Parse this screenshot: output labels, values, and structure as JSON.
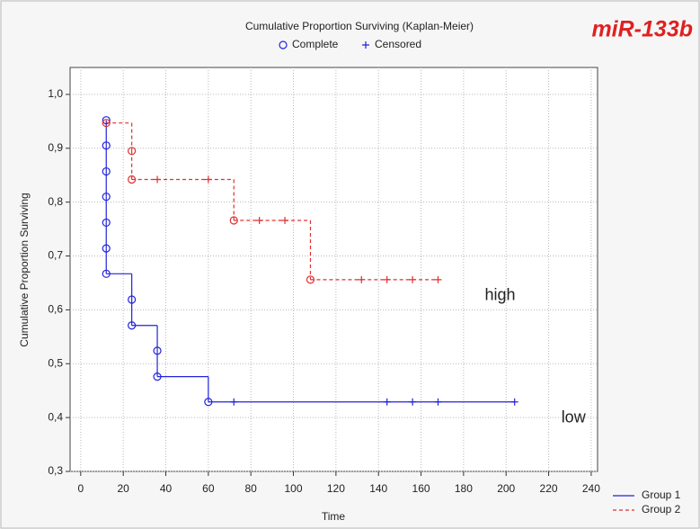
{
  "chart_data": {
    "type": "km",
    "title": "Cumulative Proportion Surviving (Kaplan-Meier)",
    "marker_legend": [
      {
        "symbol": "o",
        "label": "Complete"
      },
      {
        "symbol": "+",
        "label": "Censored"
      }
    ],
    "annotation": "miR-133b",
    "xlabel": "Time",
    "ylabel": "Cumulative Proportion Surviving",
    "xlim": [
      -5,
      243
    ],
    "ylim": [
      0.3,
      1.05
    ],
    "xticks": [
      0,
      20,
      40,
      60,
      80,
      100,
      120,
      140,
      160,
      180,
      200,
      220,
      240
    ],
    "yticks": [
      {
        "value": 0.3,
        "label": "0,3"
      },
      {
        "value": 0.4,
        "label": "0,4"
      },
      {
        "value": 0.5,
        "label": "0,5"
      },
      {
        "value": 0.6,
        "label": "0,6"
      },
      {
        "value": 0.7,
        "label": "0,7"
      },
      {
        "value": 0.8,
        "label": "0,8"
      },
      {
        "value": 0.9,
        "label": "0,9"
      },
      {
        "value": 1.0,
        "label": "1,0"
      }
    ],
    "grid": true,
    "series": [
      {
        "name": "Group 1",
        "label": "low",
        "color": "#2222dd",
        "dashed": false,
        "x": [
          12,
          12,
          12,
          12,
          12,
          12,
          12,
          24,
          24,
          36,
          36,
          60,
          72,
          144,
          156,
          168,
          204
        ],
        "values": [
          0.952,
          0.905,
          0.857,
          0.81,
          0.762,
          0.714,
          0.667,
          0.619,
          0.571,
          0.524,
          0.476,
          0.429,
          0.429,
          0.429,
          0.429,
          0.429,
          0.429
        ],
        "markers": [
          "o",
          "o",
          "o",
          "o",
          "o",
          "o",
          "o",
          "o",
          "o",
          "o",
          "o",
          "o",
          "+",
          "+",
          "+",
          "+",
          "+"
        ]
      },
      {
        "name": "Group 2",
        "label": "high",
        "color": "#e03030",
        "dashed": true,
        "x": [
          12,
          24,
          24,
          36,
          60,
          72,
          84,
          96,
          108,
          132,
          144,
          156,
          168
        ],
        "values": [
          0.947,
          0.895,
          0.842,
          0.842,
          0.842,
          0.766,
          0.766,
          0.766,
          0.656,
          0.656,
          0.656,
          0.656,
          0.656
        ],
        "markers": [
          "o",
          "o",
          "o",
          "+",
          "+",
          "o",
          "+",
          "+",
          "o",
          "+",
          "+",
          "+",
          "+"
        ]
      }
    ]
  }
}
